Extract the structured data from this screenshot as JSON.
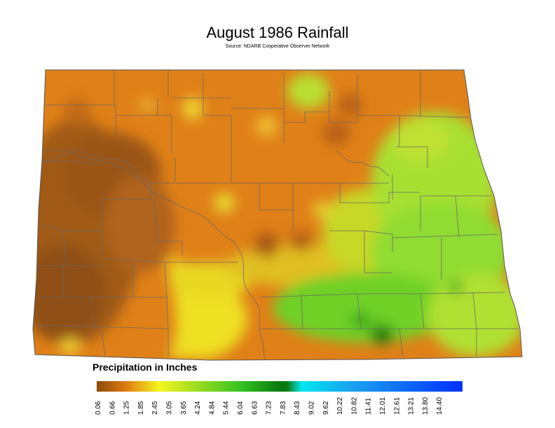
{
  "title": "August 1986 Rainfall",
  "subtitle": "Source: NDARB Cooperative Observer Network",
  "legend": {
    "title": "Precipitation in Inches",
    "ticks": [
      "0.06",
      "0.66",
      "1.25",
      "1.85",
      "2.45",
      "3.05",
      "3.65",
      "4.24",
      "4.84",
      "5.44",
      "6.04",
      "6.63",
      "7.23",
      "7.83",
      "8.43",
      "9.02",
      "9.62",
      "10.22",
      "10.82",
      "11.41",
      "12.01",
      "12.61",
      "13.21",
      "13.80",
      "14.40"
    ],
    "colors": {
      "low": "#8a4a0a",
      "mid_low": "#e07a10",
      "mid": "#f5f520",
      "green": "#30c020",
      "dark_green": "#0a7a10",
      "cyan": "#00e8f0",
      "blue": "#0030ff"
    }
  }
}
